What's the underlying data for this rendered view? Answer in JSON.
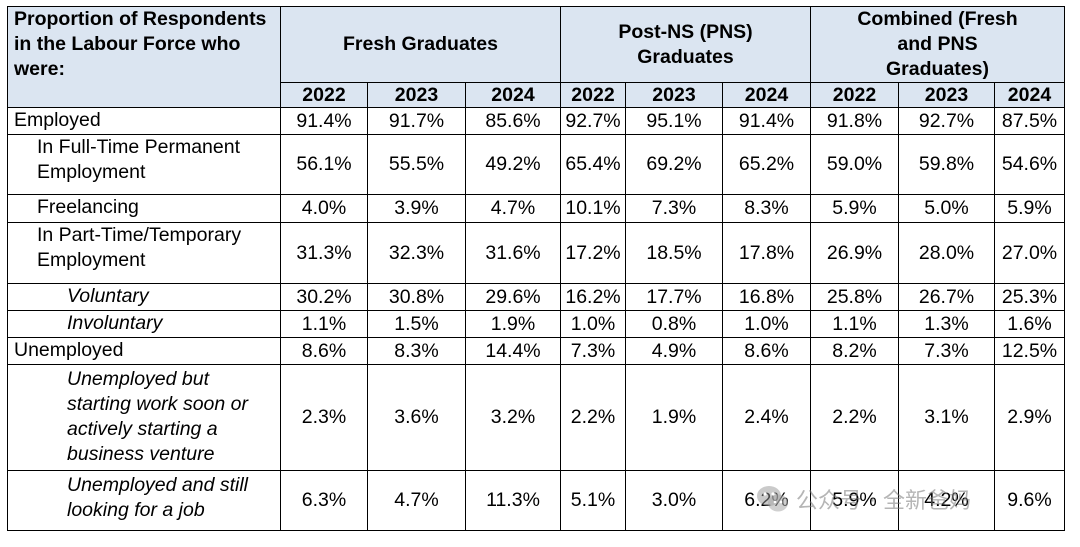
{
  "header": {
    "corner_label": "Proportion of Respondents in the Labour Force who were:",
    "groups": [
      {
        "label": "Fresh Graduates"
      },
      {
        "label": "Post-NS (PNS) Graduates"
      },
      {
        "label": "Combined (Fresh and PNS Graduates)"
      }
    ],
    "years": [
      "2022",
      "2023",
      "2024",
      "2022",
      "2023",
      "2024",
      "2022",
      "2023",
      "2024"
    ]
  },
  "rows": [
    {
      "label": "Employed",
      "values": [
        "91.4%",
        "91.7%",
        "85.6%",
        "92.7%",
        "95.1%",
        "91.4%",
        "91.8%",
        "92.7%",
        "87.5%"
      ]
    },
    {
      "label": "In Full-Time Permanent Employment",
      "values": [
        "56.1%",
        "55.5%",
        "49.2%",
        "65.4%",
        "69.2%",
        "65.2%",
        "59.0%",
        "59.8%",
        "54.6%"
      ]
    },
    {
      "label": "Freelancing",
      "values": [
        "4.0%",
        "3.9%",
        "4.7%",
        "10.1%",
        "7.3%",
        "8.3%",
        "5.9%",
        "5.0%",
        "5.9%"
      ]
    },
    {
      "label": "In Part-Time/Temporary Employment",
      "values": [
        "31.3%",
        "32.3%",
        "31.6%",
        "17.2%",
        "18.5%",
        "17.8%",
        "26.9%",
        "28.0%",
        "27.0%"
      ]
    },
    {
      "label": "Voluntary",
      "values": [
        "30.2%",
        "30.8%",
        "29.6%",
        "16.2%",
        "17.7%",
        "16.8%",
        "25.8%",
        "26.7%",
        "25.3%"
      ]
    },
    {
      "label": "Involuntary",
      "values": [
        "1.1%",
        "1.5%",
        "1.9%",
        "1.0%",
        "0.8%",
        "1.0%",
        "1.1%",
        "1.3%",
        "1.6%"
      ]
    },
    {
      "label": "Unemployed",
      "values": [
        "8.6%",
        "8.3%",
        "14.4%",
        "7.3%",
        "4.9%",
        "8.6%",
        "8.2%",
        "7.3%",
        "12.5%"
      ]
    },
    {
      "label": "Unemployed but starting work soon or actively starting a business venture",
      "values": [
        "2.3%",
        "3.6%",
        "3.2%",
        "2.2%",
        "1.9%",
        "2.4%",
        "2.2%",
        "3.1%",
        "2.9%"
      ]
    },
    {
      "label": "Unemployed and still looking for a job",
      "values": [
        "6.3%",
        "4.7%",
        "11.3%",
        "5.1%",
        "3.0%",
        "6.2%",
        "5.9%",
        "4.2%",
        "9.6%"
      ]
    }
  ],
  "watermark": {
    "text": "公众号 · 全新爸妈",
    "icon": "wechat-icon"
  }
}
